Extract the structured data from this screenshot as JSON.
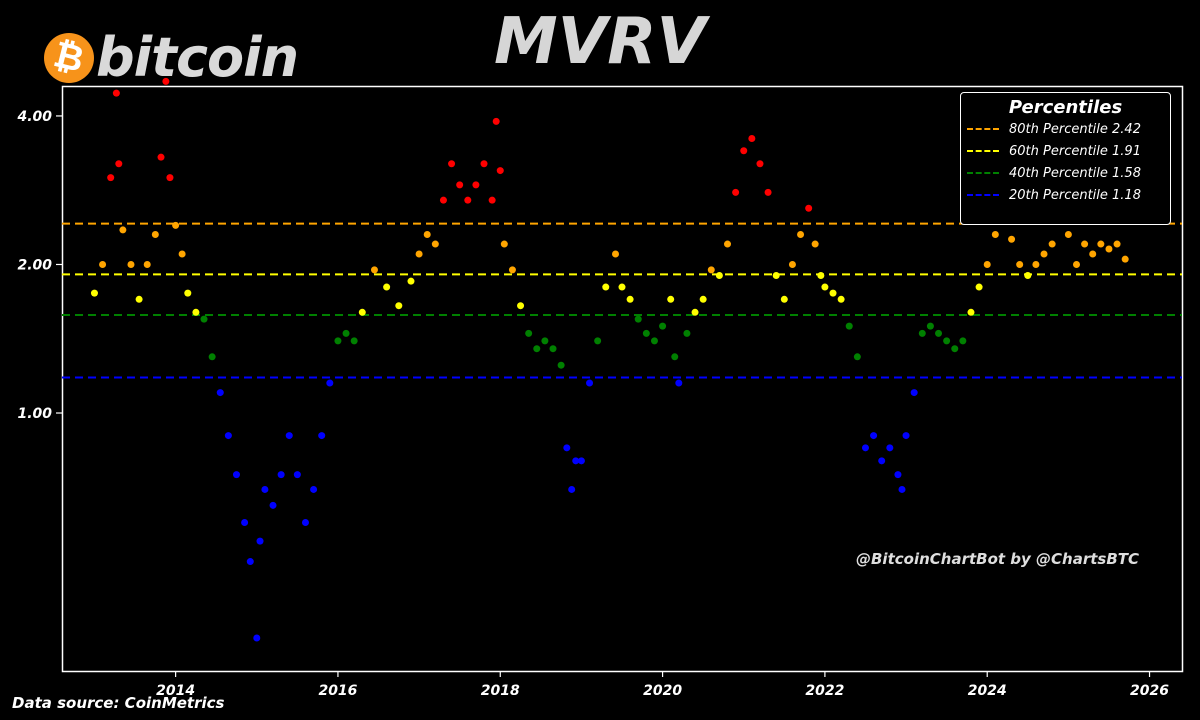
{
  "header": {
    "logo_text": "bitcoin",
    "logo_glyph": "₿",
    "title": "MVRV"
  },
  "footer": {
    "source": "Data source: CoinMetrics",
    "watermark": "@BitcoinChartBot by @ChartsBTC"
  },
  "colors": {
    "background": "#000000",
    "red": "#ff0000",
    "orange": "#ffa500",
    "yellow": "#ffff00",
    "green": "#008000",
    "blue": "#0000ff",
    "axes": "#ffffff"
  },
  "chart_data": {
    "type": "scatter",
    "title": "MVRV",
    "xlabel": "",
    "ylabel": "",
    "xlim": [
      2012.6,
      2026.4
    ],
    "ylim": [
      0.3,
      4.6
    ],
    "x_ticks": [
      "2014",
      "2016",
      "2018",
      "2020",
      "2022",
      "2024",
      "2026"
    ],
    "y_ticks": [
      "1.00",
      "2.00",
      "4.00"
    ],
    "y_scale": "log",
    "grid": false,
    "legend": {
      "title": "Percentiles",
      "placement": "top-right",
      "entries": [
        {
          "label": "80th Percentile 2.42",
          "value": 2.42,
          "color": "#ffa500"
        },
        {
          "label": "60th Percentile 1.91",
          "value": 1.91,
          "color": "#ffff00"
        },
        {
          "label": "40th Percentile 1.58",
          "value": 1.58,
          "color": "#008000"
        },
        {
          "label": "20th Percentile 1.18",
          "value": 1.18,
          "color": "#0000ff"
        }
      ]
    },
    "color_bands": [
      {
        "above": 2.42,
        "color": "#ff0000"
      },
      {
        "above": 1.91,
        "color": "#ffa500"
      },
      {
        "above": 1.58,
        "color": "#ffff00"
      },
      {
        "above": 1.18,
        "color": "#008000"
      },
      {
        "above": 0,
        "color": "#0000ff"
      }
    ],
    "series": [
      {
        "x": [
          2013.0,
          2013.1,
          2013.2,
          2013.27,
          2013.3,
          2013.35,
          2013.45,
          2013.55,
          2013.65,
          2013.75,
          2013.82,
          2013.88,
          2013.93,
          2014.0,
          2014.08,
          2014.15,
          2014.25,
          2014.35,
          2014.45,
          2014.55,
          2014.65,
          2014.75,
          2014.85,
          2014.92,
          2015.0,
          2015.04,
          2015.1,
          2015.2,
          2015.3,
          2015.4,
          2015.5,
          2015.6,
          2015.7,
          2015.8,
          2015.9,
          2016.0,
          2016.1,
          2016.2,
          2016.3,
          2016.45,
          2016.6,
          2016.75,
          2016.9,
          2017.0,
          2017.1,
          2017.2,
          2017.3,
          2017.4,
          2017.5,
          2017.6,
          2017.7,
          2017.8,
          2017.9,
          2017.95,
          2018.0,
          2018.05,
          2018.15,
          2018.25,
          2018.35,
          2018.45,
          2018.55,
          2018.65,
          2018.75,
          2018.82,
          2018.88,
          2018.93,
          2019.0,
          2019.1,
          2019.2,
          2019.3,
          2019.42,
          2019.5,
          2019.6,
          2019.7,
          2019.8,
          2019.9,
          2020.0,
          2020.1,
          2020.15,
          2020.2,
          2020.3,
          2020.4,
          2020.5,
          2020.6,
          2020.7,
          2020.8,
          2020.9,
          2021.0,
          2021.1,
          2021.2,
          2021.3,
          2021.4,
          2021.5,
          2021.6,
          2021.7,
          2021.8,
          2021.88,
          2021.95,
          2022.0,
          2022.1,
          2022.2,
          2022.3,
          2022.4,
          2022.5,
          2022.6,
          2022.7,
          2022.8,
          2022.9,
          2022.95,
          2023.0,
          2023.1,
          2023.2,
          2023.3,
          2023.4,
          2023.5,
          2023.6,
          2023.7,
          2023.8,
          2023.9,
          2024.0,
          2024.1,
          2024.2,
          2024.3,
          2024.4,
          2024.5,
          2024.6,
          2024.7,
          2024.8,
          2024.9,
          2025.0,
          2025.1,
          2025.2,
          2025.3,
          2025.4,
          2025.5,
          2025.6,
          2025.7
        ],
        "values": [
          1.75,
          2.0,
          3.0,
          4.45,
          3.2,
          2.35,
          2.0,
          1.7,
          2.0,
          2.3,
          3.3,
          4.7,
          3.0,
          2.4,
          2.1,
          1.75,
          1.6,
          1.55,
          1.3,
          1.1,
          0.9,
          0.75,
          0.6,
          0.5,
          0.35,
          0.55,
          0.7,
          0.65,
          0.75,
          0.9,
          0.75,
          0.6,
          0.7,
          0.9,
          1.15,
          1.4,
          1.45,
          1.4,
          1.6,
          1.95,
          1.8,
          1.65,
          1.85,
          2.1,
          2.3,
          2.2,
          2.7,
          3.2,
          2.9,
          2.7,
          2.9,
          3.2,
          2.7,
          3.9,
          3.1,
          2.2,
          1.95,
          1.65,
          1.45,
          1.35,
          1.4,
          1.35,
          1.25,
          0.85,
          0.7,
          0.8,
          0.8,
          1.15,
          1.4,
          1.8,
          2.1,
          1.8,
          1.7,
          1.55,
          1.45,
          1.4,
          1.5,
          1.7,
          1.3,
          1.15,
          1.45,
          1.6,
          1.7,
          1.95,
          1.9,
          2.2,
          2.8,
          3.4,
          3.6,
          3.2,
          2.8,
          1.9,
          1.7,
          2.0,
          2.3,
          2.6,
          2.2,
          1.9,
          1.8,
          1.75,
          1.7,
          1.5,
          1.3,
          0.85,
          0.9,
          0.8,
          0.85,
          0.75,
          0.7,
          0.9,
          1.1,
          1.45,
          1.5,
          1.45,
          1.4,
          1.35,
          1.4,
          1.6,
          1.8,
          2.0,
          2.3,
          2.5,
          2.25,
          2.0,
          1.9,
          2.0,
          2.1,
          2.2,
          2.5,
          2.3,
          2.0,
          2.2,
          2.1,
          2.2,
          2.15,
          2.2,
          2.05
        ]
      }
    ]
  }
}
